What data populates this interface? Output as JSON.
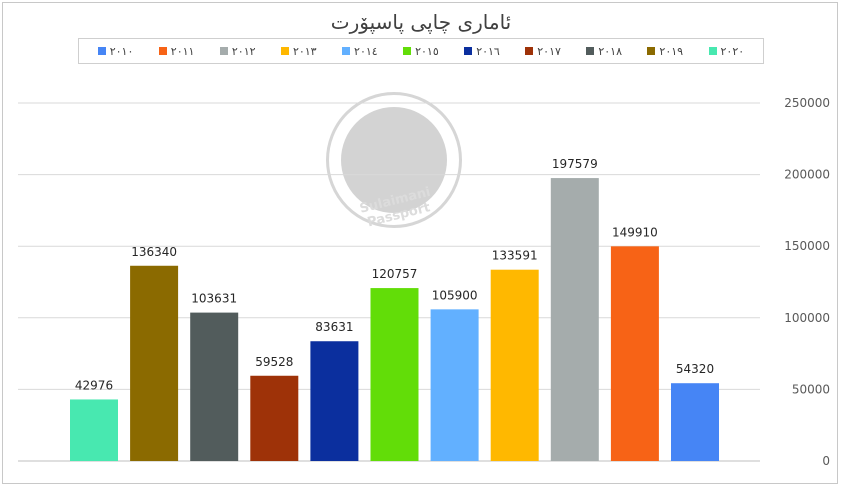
{
  "chart_data": {
    "type": "bar",
    "title": "ئاماری چاپی پاسپۆرت",
    "categories": [
      "٢٠٢٠",
      "٢٠١٩",
      "٢٠١٨",
      "٢٠١٧",
      "٢٠١٦",
      "٢٠١٥",
      "٢٠١٤",
      "٢٠١٣",
      "٢٠١٢",
      "٢٠١١",
      "٢٠١٠"
    ],
    "values": [
      42976,
      136340,
      103631,
      59528,
      83631,
      120757,
      105900,
      133591,
      197579,
      149910,
      54320
    ],
    "colors": [
      "#48e8b0",
      "#8b6a00",
      "#525c5c",
      "#9e3208",
      "#0b2f9e",
      "#62dd08",
      "#62b0ff",
      "#ffb800",
      "#a5acac",
      "#f76316",
      "#4685f5"
    ],
    "ylim": [
      0,
      250000
    ],
    "yticks": [
      0,
      50000,
      100000,
      150000,
      200000,
      250000
    ],
    "y_axis_position": "right",
    "grid": true,
    "legend_position": "top",
    "legend": [
      {
        "label": "٢٠١٠",
        "color": "#4685f5"
      },
      {
        "label": "٢٠١١",
        "color": "#f76316"
      },
      {
        "label": "٢٠١٢",
        "color": "#a5acac"
      },
      {
        "label": "٢٠١٣",
        "color": "#ffb800"
      },
      {
        "label": "٢٠١٤",
        "color": "#62b0ff"
      },
      {
        "label": "٢٠١٥",
        "color": "#62dd08"
      },
      {
        "label": "٢٠١٦",
        "color": "#0b2f9e"
      },
      {
        "label": "٢٠١٧",
        "color": "#9e3208"
      },
      {
        "label": "٢٠١٨",
        "color": "#525c5c"
      },
      {
        "label": "٢٠١٩",
        "color": "#8b6a00"
      },
      {
        "label": "٢٠٢٠",
        "color": "#48e8b0"
      }
    ]
  },
  "watermark": {
    "text": "Sulaimani Passport"
  }
}
